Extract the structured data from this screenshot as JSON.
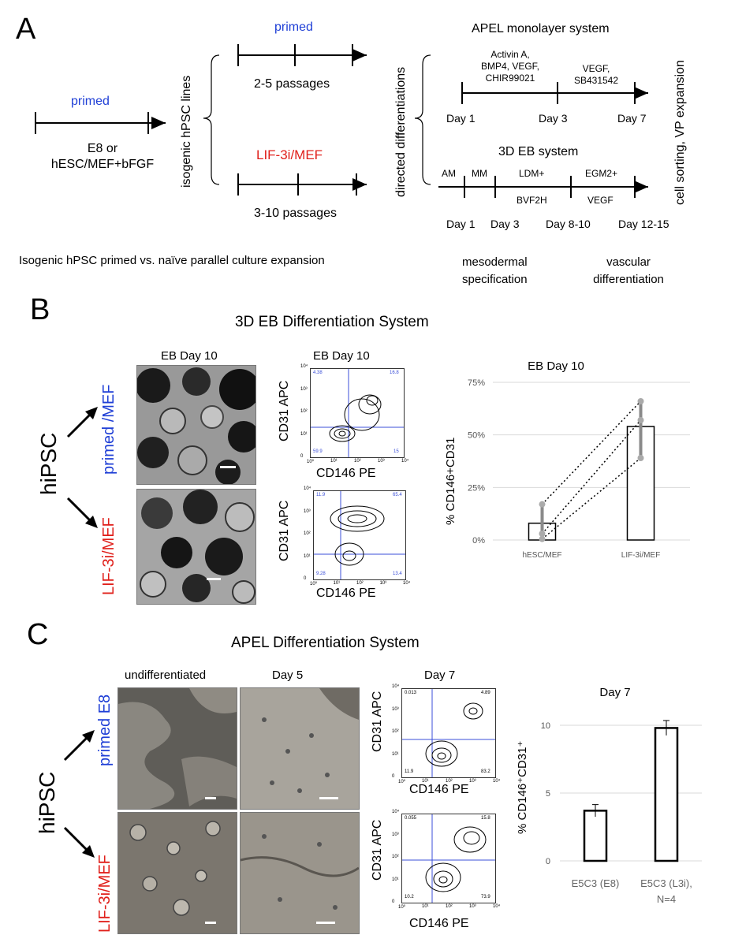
{
  "panel_a": {
    "letter": "A",
    "primed_top": "primed",
    "e8_line1": "E8 or",
    "e8_line2": "hESC/MEF+bFGF",
    "isogenic_vertical": "isogenic hPSC lines",
    "primed_branch": "primed",
    "passages_primed": "2-5 passages",
    "naive_branch": "LIF-3i/MEF",
    "passages_naive": "3-10 passages",
    "directed_vertical": "directed differentiations",
    "apel_title": "APEL monolayer system",
    "apel_factors1": [
      "Activin A,",
      "BMP4, VEGF,",
      "CHIR99021"
    ],
    "apel_factors2": [
      "VEGF,",
      "SB431542"
    ],
    "apel_days": [
      "Day 1",
      "Day 3",
      "Day 7"
    ],
    "eb_title": "3D EB system",
    "eb_media": [
      "AM",
      "MM",
      "LDM+",
      "EGM2+"
    ],
    "eb_media_below": [
      "BVF2H",
      "VEGF"
    ],
    "eb_days": [
      "Day 1",
      "Day 3",
      "Day 8-10",
      "Day 12-15"
    ],
    "cell_sorting_vertical": "cell sorting, VP expansion",
    "caption": "Isogenic hPSC primed vs. naïve parallel culture expansion",
    "mesodermal": [
      "mesodermal",
      "specification"
    ],
    "vascular": [
      "vascular",
      "differentiation"
    ]
  },
  "panel_b": {
    "letter": "B",
    "title": "3D EB Differentiation System",
    "photo_header": "EB Day 10",
    "facs_header": "EB Day 10",
    "hipsc": "hiPSC",
    "row1_label": "primed /MEF",
    "row2_label": "LIF-3i/MEF",
    "ylabel_facs": "CD31 APC",
    "xlabel_facs": "CD146 PE",
    "facs1_quadrants": [
      "4.38",
      "16.8",
      "59.9",
      "15"
    ],
    "facs2_quadrants": [
      "11.9",
      "65.4",
      "9.28",
      "13.4"
    ],
    "tick_labels": [
      "10⁰",
      "10¹",
      "10²",
      "10³",
      "10⁴"
    ],
    "zero_label": "0"
  },
  "panel_c": {
    "letter": "C",
    "title": "APEL Differentiation System",
    "col_undiff": "undifferentiated",
    "col_day5": "Day 5",
    "col_day7": "Day 7",
    "hipsc": "hiPSC",
    "row1_label": "primed E8",
    "row2_label": "LIF-3i/MEF",
    "ylabel_facs": "CD31 APC",
    "xlabel_facs": "CD146 PE",
    "facs1_quadrants": [
      "0.013",
      "4.89",
      "11.9",
      "83.2"
    ],
    "facs2_quadrants": [
      "0.055",
      "15.8",
      "10.2",
      "73.9"
    ],
    "tick_labels": [
      "10⁰",
      "10¹",
      "10²",
      "10³",
      "10⁴"
    ],
    "zero_label": "0"
  },
  "colors": {
    "blue": "#1f3fd6",
    "red": "#e0201b",
    "gate": "#3b4fd8",
    "gray": "#7f7f7f"
  },
  "chart_data": [
    {
      "type": "bar",
      "title": "EB Day 10",
      "ylabel": "% CD146+CD31",
      "categories": [
        "hESC/MEF",
        "LIF-3i/MEF"
      ],
      "values": [
        8,
        54
      ],
      "error_bars": [
        [
          0,
          17
        ],
        [
          40,
          66
        ]
      ],
      "paired_points": [
        [
          0.5,
          39
        ],
        [
          3,
          57
        ],
        [
          17,
          66
        ]
      ],
      "ylim": [
        0,
        75
      ],
      "yticks": [
        "0%",
        "25%",
        "50%",
        "75%"
      ],
      "ytick_values": [
        0,
        25,
        50,
        75
      ],
      "grid": true
    },
    {
      "type": "bar",
      "title": "Day 7",
      "ylabel": "% CD146⁺CD31⁺",
      "categories": [
        "E5C3 (E8)",
        "E5C3 (L3i),"
      ],
      "category_note": "N=4",
      "values": [
        3.7,
        9.8
      ],
      "errors": [
        0.45,
        0.55
      ],
      "ylim": [
        0,
        10
      ],
      "yticks": [
        "0",
        "5",
        "10"
      ],
      "ytick_values": [
        0,
        5,
        10
      ],
      "grid": true
    }
  ]
}
